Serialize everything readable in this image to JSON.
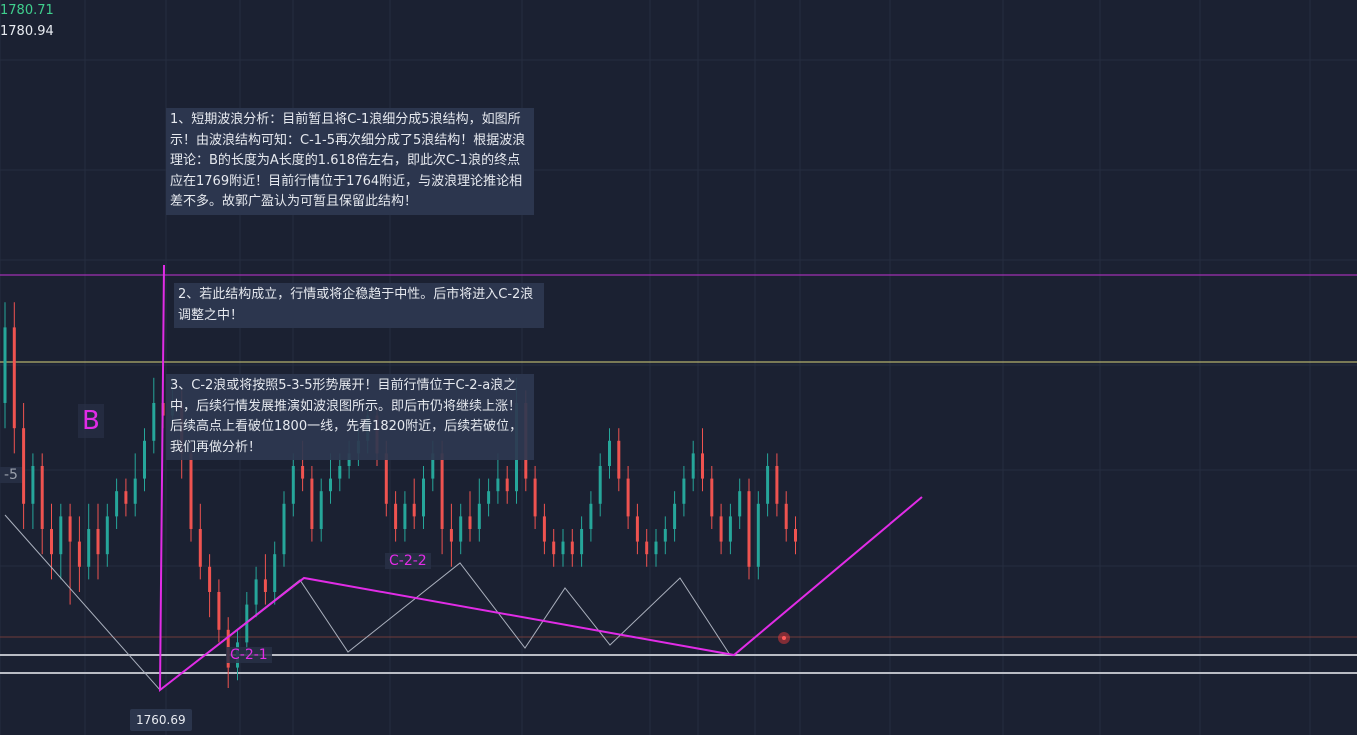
{
  "header": {
    "price_a": "1780.71",
    "price_b": "1780.94",
    "price_a_color": "#3fcf8e",
    "price_b_color": "#e8ebf1"
  },
  "annotations": {
    "note_1": "1、短期波浪分析：目前暂且将C-1浪细分成5浪结构，如图所示！由波浪结构可知：C-1-5再次细分成了5浪结构！根据波浪理论：B的长度为A长度的1.618倍左右，即此次C-1浪的终点应在1769附近！目前行情位于1764附近，与波浪理论推论相差不多。故郭广盈认为可暂且保留此结构！",
    "note_2": "2、若此结构成立，行情或将企稳趋于中性。后市将进入C-2浪调整之中！",
    "note_3": "3、C-2浪或将按照5-3-5形势展开！目前行情位于C-2-a浪之中，后续行情发展推演如波浪图所示。即后市仍将继续上涨！后续高点上看破位1800一线，先看1820附近，后续若破位，我们再做分析！"
  },
  "labels": {
    "wave_b": "B",
    "wave_c15": "-5",
    "wave_c21": "C-2-1",
    "wave_c22": "C-2-2",
    "low_price": "1760.69"
  },
  "colors": {
    "background": "#1b2132",
    "up": "#26a69a",
    "down": "#ef5350",
    "wave": "#e12ce6",
    "magenta_level": "#c232d1",
    "yellow_level": "#d8d27a",
    "support_level": "#b9bcc4"
  },
  "chart_data": {
    "type": "candlestick",
    "levels": {
      "magenta": 1797.5,
      "yellow": 1790.5,
      "support_upper": 1765.0,
      "support_lower": 1763.5
    },
    "low": 1760.69,
    "candles": [
      {
        "o": 1772,
        "c": 1775,
        "h": 1776,
        "l": 1771
      },
      {
        "o": 1775,
        "c": 1771,
        "h": 1776,
        "l": 1770
      },
      {
        "o": 1771,
        "c": 1768,
        "h": 1772,
        "l": 1767
      },
      {
        "o": 1768,
        "c": 1769.5,
        "h": 1770,
        "l": 1767
      },
      {
        "o": 1769.5,
        "c": 1767,
        "h": 1770,
        "l": 1766
      },
      {
        "o": 1767,
        "c": 1766,
        "h": 1768,
        "l": 1765
      },
      {
        "o": 1766,
        "c": 1767.5,
        "h": 1768,
        "l": 1765
      },
      {
        "o": 1767.5,
        "c": 1766.5,
        "h": 1768,
        "l": 1764
      },
      {
        "o": 1766.5,
        "c": 1765.5,
        "h": 1767.5,
        "l": 1764.5
      },
      {
        "o": 1765.5,
        "c": 1767,
        "h": 1768,
        "l": 1765
      },
      {
        "o": 1767,
        "c": 1766,
        "h": 1768,
        "l": 1765
      },
      {
        "o": 1766,
        "c": 1767.5,
        "h": 1768,
        "l": 1765.5
      },
      {
        "o": 1767.5,
        "c": 1768.5,
        "h": 1769,
        "l": 1767
      },
      {
        "o": 1768.5,
        "c": 1768,
        "h": 1769,
        "l": 1767.5
      },
      {
        "o": 1768,
        "c": 1769,
        "h": 1770,
        "l": 1767.5
      },
      {
        "o": 1769,
        "c": 1770.5,
        "h": 1771,
        "l": 1768.5
      },
      {
        "o": 1770.5,
        "c": 1772,
        "h": 1773,
        "l": 1770
      },
      {
        "o": 1772,
        "c": 1771.5,
        "h": 1772.5,
        "l": 1771
      },
      {
        "o": 1771.5,
        "c": 1772,
        "h": 1773,
        "l": 1771
      },
      {
        "o": 1772,
        "c": 1770,
        "h": 1772.5,
        "l": 1769
      },
      {
        "o": 1770,
        "c": 1767,
        "h": 1770.5,
        "l": 1766.5
      },
      {
        "o": 1767,
        "c": 1765.5,
        "h": 1768,
        "l": 1765
      },
      {
        "o": 1765.5,
        "c": 1764.5,
        "h": 1766,
        "l": 1763.5
      },
      {
        "o": 1764.5,
        "c": 1763,
        "h": 1765,
        "l": 1762.5
      },
      {
        "o": 1763,
        "c": 1761.5,
        "h": 1763.5,
        "l": 1760.69
      },
      {
        "o": 1761.5,
        "c": 1762.5,
        "h": 1763,
        "l": 1761
      },
      {
        "o": 1762.5,
        "c": 1764,
        "h": 1764.5,
        "l": 1762
      },
      {
        "o": 1764,
        "c": 1765,
        "h": 1765.5,
        "l": 1763.5
      },
      {
        "o": 1765,
        "c": 1764.5,
        "h": 1766,
        "l": 1764
      },
      {
        "o": 1764.5,
        "c": 1766,
        "h": 1766.5,
        "l": 1764
      },
      {
        "o": 1766,
        "c": 1768,
        "h": 1768.5,
        "l": 1765.5
      },
      {
        "o": 1768,
        "c": 1769.5,
        "h": 1770,
        "l": 1767.5
      },
      {
        "o": 1769.5,
        "c": 1769,
        "h": 1770.5,
        "l": 1768.5
      },
      {
        "o": 1769,
        "c": 1767,
        "h": 1769.5,
        "l": 1766.5
      },
      {
        "o": 1767,
        "c": 1768.5,
        "h": 1769,
        "l": 1766.5
      },
      {
        "o": 1768.5,
        "c": 1769,
        "h": 1770,
        "l": 1768
      },
      {
        "o": 1769,
        "c": 1769.5,
        "h": 1770,
        "l": 1768.5
      },
      {
        "o": 1769.5,
        "c": 1770,
        "h": 1770.5,
        "l": 1769
      },
      {
        "o": 1770,
        "c": 1770.5,
        "h": 1771,
        "l": 1769.5
      },
      {
        "o": 1770.5,
        "c": 1771.5,
        "h": 1772,
        "l": 1770
      },
      {
        "o": 1771.5,
        "c": 1770,
        "h": 1772,
        "l": 1769.5
      },
      {
        "o": 1770,
        "c": 1768,
        "h": 1770.5,
        "l": 1767.5
      },
      {
        "o": 1768,
        "c": 1767,
        "h": 1768.5,
        "l": 1766.5
      },
      {
        "o": 1767,
        "c": 1768,
        "h": 1768.5,
        "l": 1766.5
      },
      {
        "o": 1768,
        "c": 1767.5,
        "h": 1769,
        "l": 1767
      },
      {
        "o": 1767.5,
        "c": 1769,
        "h": 1769.5,
        "l": 1767
      },
      {
        "o": 1769,
        "c": 1770,
        "h": 1770.5,
        "l": 1768.5
      },
      {
        "o": 1770,
        "c": 1767,
        "h": 1770.5,
        "l": 1766
      },
      {
        "o": 1767,
        "c": 1766.5,
        "h": 1768,
        "l": 1765.5
      },
      {
        "o": 1766.5,
        "c": 1767.5,
        "h": 1768,
        "l": 1766
      },
      {
        "o": 1767.5,
        "c": 1767,
        "h": 1768.5,
        "l": 1766.5
      },
      {
        "o": 1767,
        "c": 1768,
        "h": 1769,
        "l": 1766.5
      },
      {
        "o": 1768,
        "c": 1768.5,
        "h": 1769,
        "l": 1767.5
      },
      {
        "o": 1768.5,
        "c": 1769,
        "h": 1770,
        "l": 1768
      },
      {
        "o": 1769,
        "c": 1768.5,
        "h": 1769.5,
        "l": 1768
      },
      {
        "o": 1768.5,
        "c": 1772,
        "h": 1773,
        "l": 1768
      },
      {
        "o": 1772,
        "c": 1769,
        "h": 1772.5,
        "l": 1768.5
      },
      {
        "o": 1769,
        "c": 1767.5,
        "h": 1769.5,
        "l": 1767
      },
      {
        "o": 1767.5,
        "c": 1766.5,
        "h": 1768,
        "l": 1766
      },
      {
        "o": 1766.5,
        "c": 1766,
        "h": 1767,
        "l": 1765.5
      },
      {
        "o": 1766,
        "c": 1766.5,
        "h": 1767,
        "l": 1765.5
      },
      {
        "o": 1766.5,
        "c": 1766,
        "h": 1767,
        "l": 1765.5
      },
      {
        "o": 1766,
        "c": 1767,
        "h": 1767.5,
        "l": 1765.5
      },
      {
        "o": 1767,
        "c": 1768,
        "h": 1768.5,
        "l": 1766.5
      },
      {
        "o": 1768,
        "c": 1769.5,
        "h": 1770,
        "l": 1767.5
      },
      {
        "o": 1769.5,
        "c": 1770.5,
        "h": 1771,
        "l": 1769
      },
      {
        "o": 1770.5,
        "c": 1769,
        "h": 1771,
        "l": 1768.5
      },
      {
        "o": 1769,
        "c": 1767.5,
        "h": 1769.5,
        "l": 1767
      },
      {
        "o": 1767.5,
        "c": 1766.5,
        "h": 1768,
        "l": 1766
      },
      {
        "o": 1766.5,
        "c": 1766,
        "h": 1767,
        "l": 1765.5
      },
      {
        "o": 1766,
        "c": 1766.5,
        "h": 1767,
        "l": 1765.5
      },
      {
        "o": 1766.5,
        "c": 1767,
        "h": 1767.5,
        "l": 1766
      },
      {
        "o": 1767,
        "c": 1768,
        "h": 1768.5,
        "l": 1766.5
      },
      {
        "o": 1768,
        "c": 1769,
        "h": 1769.5,
        "l": 1767.5
      },
      {
        "o": 1769,
        "c": 1770,
        "h": 1770.5,
        "l": 1768.5
      },
      {
        "o": 1770,
        "c": 1769,
        "h": 1771,
        "l": 1768.5
      },
      {
        "o": 1769,
        "c": 1767.5,
        "h": 1769.5,
        "l": 1767
      },
      {
        "o": 1767.5,
        "c": 1766.5,
        "h": 1768,
        "l": 1766
      },
      {
        "o": 1766.5,
        "c": 1767.5,
        "h": 1768,
        "l": 1766
      },
      {
        "o": 1767.5,
        "c": 1768.5,
        "h": 1769,
        "l": 1767
      },
      {
        "o": 1768.5,
        "c": 1765.5,
        "h": 1769,
        "l": 1765
      },
      {
        "o": 1765.5,
        "c": 1768,
        "h": 1768.5,
        "l": 1765
      },
      {
        "o": 1768,
        "c": 1769.5,
        "h": 1770,
        "l": 1767.5
      },
      {
        "o": 1769.5,
        "c": 1768,
        "h": 1770,
        "l": 1767.5
      },
      {
        "o": 1768,
        "c": 1767,
        "h": 1768.5,
        "l": 1766.5
      },
      {
        "o": 1767,
        "c": 1766.5,
        "h": 1767.5,
        "l": 1766
      }
    ]
  }
}
